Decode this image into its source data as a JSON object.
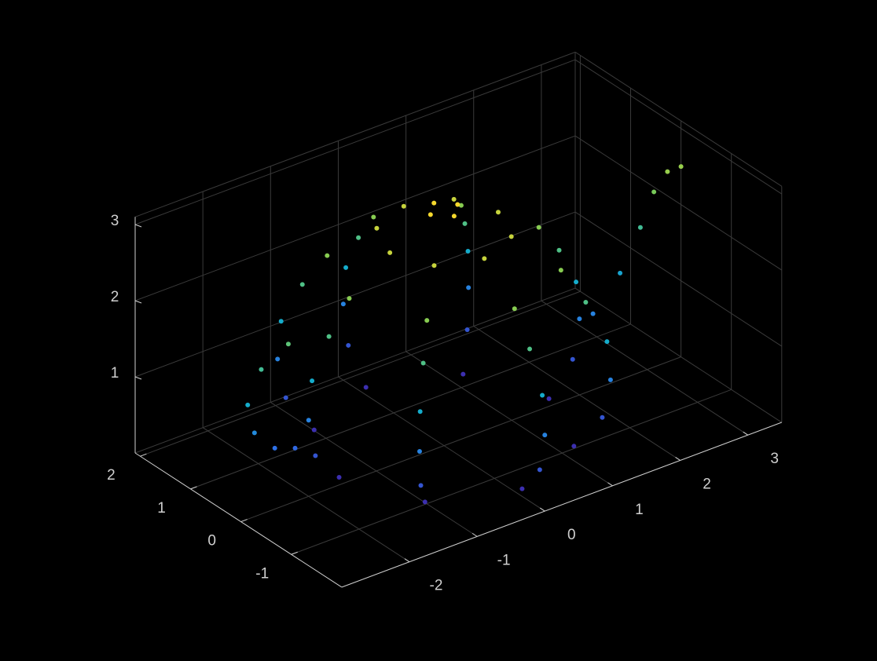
{
  "chart_data": {
    "type": "scatter3d",
    "x": [
      1.55,
      1.1,
      0,
      -1.1,
      -1.55,
      -1.1,
      0,
      1.1,
      1.9,
      1.34,
      0,
      -1.34,
      -1.9,
      -1.34,
      0,
      1.34,
      2,
      1.41,
      0,
      -1.41,
      -2,
      -1.41,
      0,
      1.41,
      1.95,
      1.38,
      0,
      -1.38,
      -1.95,
      -1.38,
      0,
      1.38,
      1.7,
      1.2,
      0,
      -1.2,
      -1.7,
      -1.2,
      0,
      1.2,
      1.4,
      0.99,
      0,
      -0.99,
      -1.4,
      -0.99,
      0,
      0.99,
      0.8,
      0.57,
      0,
      -0.57,
      -0.8,
      -0.57,
      0,
      0.57,
      0.2,
      0,
      -0.2,
      0,
      -2.3,
      -2.7,
      -2.9,
      -2.8,
      -2.5,
      -2.2,
      2.2,
      2.6,
      2.9,
      3.1,
      3.3,
      3.5
    ],
    "y": [
      0,
      1.1,
      1.55,
      1.1,
      0,
      -1.1,
      -1.55,
      -1.1,
      0,
      1.34,
      1.9,
      1.34,
      0,
      -1.34,
      -1.9,
      -1.34,
      0,
      1.41,
      2,
      1.41,
      0,
      -1.41,
      -2,
      -1.41,
      0,
      1.38,
      1.95,
      1.38,
      0,
      -1.38,
      -1.95,
      -1.38,
      0,
      1.2,
      1.7,
      1.2,
      0,
      -1.2,
      -1.7,
      -1.2,
      0,
      0.99,
      1.4,
      0.99,
      0,
      -0.99,
      -1.4,
      -0.99,
      0,
      0.57,
      0.8,
      0.57,
      0,
      -0.57,
      -0.8,
      -0.57,
      0,
      0.2,
      0,
      -0.2,
      0,
      0,
      0,
      0,
      0,
      0,
      0,
      0,
      0,
      0,
      0,
      0
    ],
    "z": [
      0.1,
      0.1,
      0.1,
      0.1,
      0.1,
      0.1,
      0.1,
      0.1,
      0.5,
      0.5,
      0.5,
      0.5,
      0.5,
      0.5,
      0.5,
      0.5,
      1,
      1,
      1,
      1,
      1,
      1,
      1,
      1,
      1.5,
      1.5,
      1.5,
      1.5,
      1.5,
      1.5,
      1.5,
      1.5,
      2,
      2,
      2,
      2,
      2,
      2,
      2,
      2,
      2.4,
      2.4,
      2.4,
      2.4,
      2.4,
      2.4,
      2.4,
      2.4,
      2.8,
      2.8,
      2.8,
      2.8,
      2.8,
      2.8,
      2.8,
      2.8,
      3.1,
      3.1,
      3.1,
      3.1,
      2.1,
      1.9,
      1.5,
      1.1,
      0.8,
      0.7,
      1,
      1.4,
      1.9,
      2.3,
      2.5,
      2.5
    ],
    "xlim": [
      -3,
      3.5
    ],
    "ylim": [
      -2,
      2.1
    ],
    "zlim": [
      0,
      3.1
    ],
    "xticks": [
      -2,
      -1,
      0,
      1,
      2,
      3
    ],
    "yticks": [
      -1,
      0,
      1,
      2
    ],
    "zticks": [
      1,
      2,
      3
    ],
    "grid": true,
    "colormap": [
      "#3e26a8",
      "#2f6fe8",
      "#13b0c9",
      "#7bcb55",
      "#f5d82d"
    ]
  }
}
